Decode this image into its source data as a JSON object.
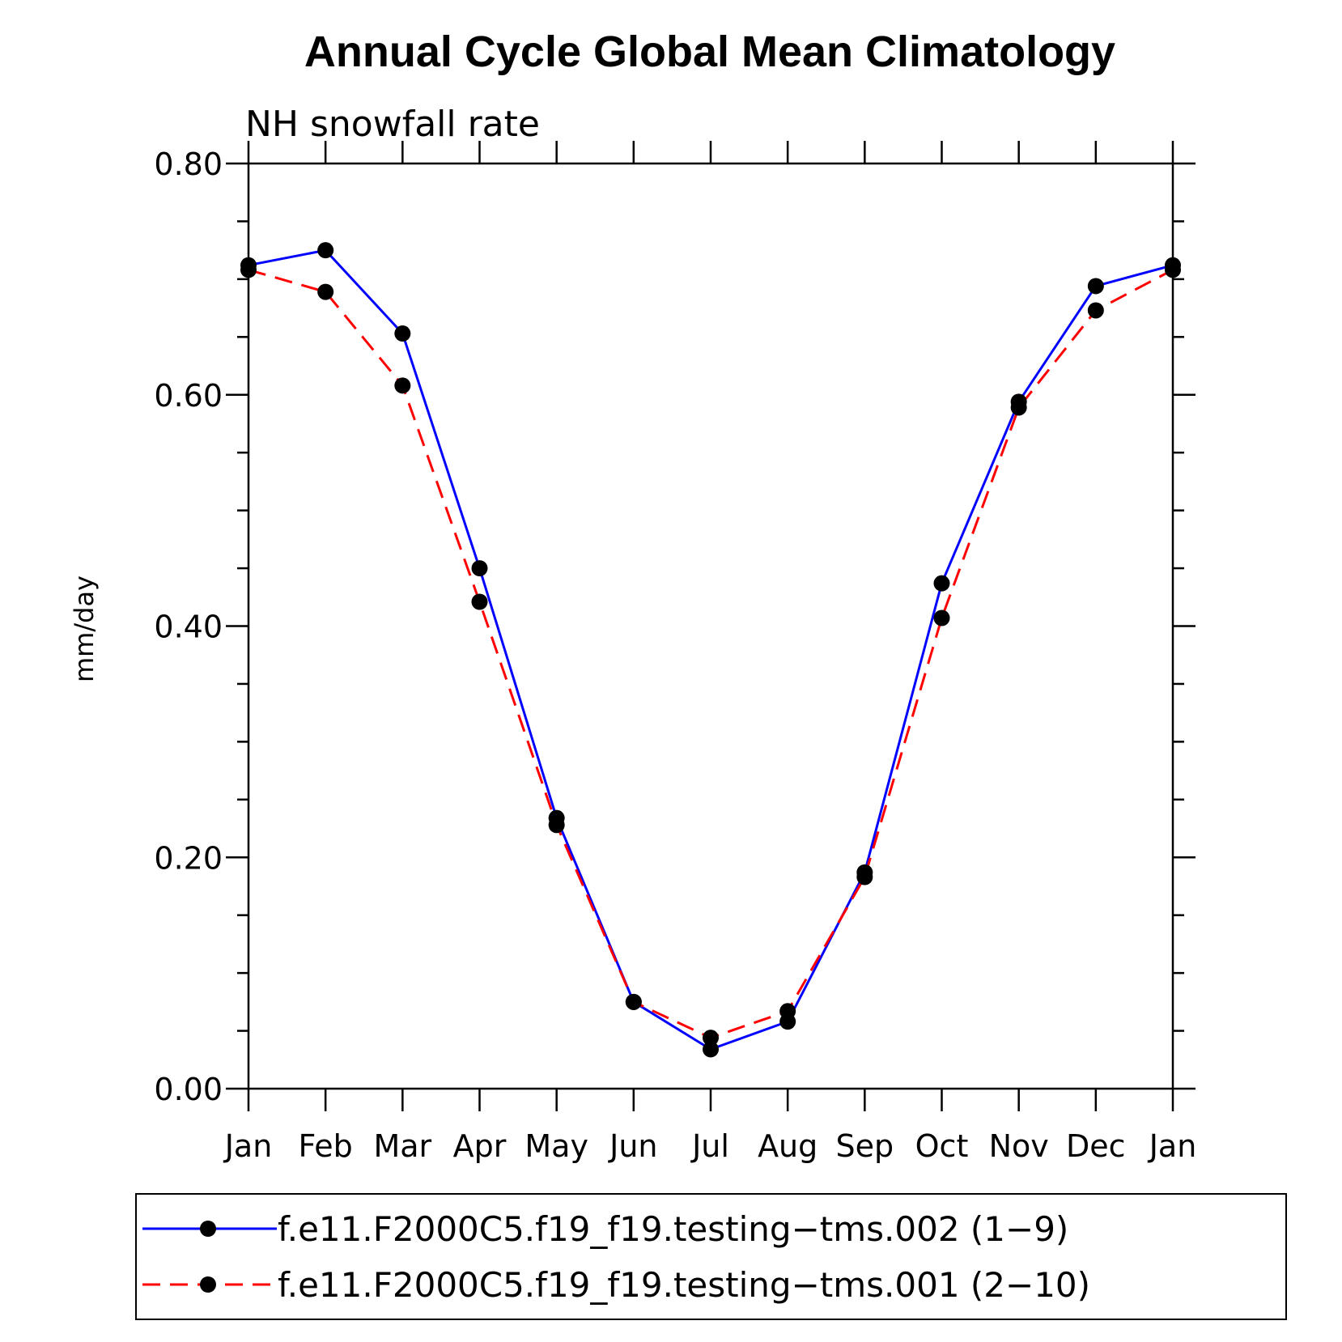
{
  "chart_data": {
    "type": "line",
    "title": "Annual Cycle Global Mean Climatology",
    "subtitle": "NH snowfall rate",
    "xlabel": "",
    "ylabel": "mm/day",
    "categories": [
      "Jan",
      "Feb",
      "Mar",
      "Apr",
      "May",
      "Jun",
      "Jul",
      "Aug",
      "Sep",
      "Oct",
      "Nov",
      "Dec",
      "Jan"
    ],
    "ylim": [
      0.0,
      0.8
    ],
    "yticks": [
      "0.00",
      "0.20",
      "0.40",
      "0.60",
      "0.80"
    ],
    "grid": false,
    "legend_position": "bottom",
    "series": [
      {
        "name": "f.e11.F2000C5.f19_f19.testing−tms.002 (1−9)",
        "color": "#0000ff",
        "line_style": "solid",
        "marker": "filled-circle",
        "values": [
          0.712,
          0.725,
          0.653,
          0.45,
          0.234,
          0.075,
          0.034,
          0.058,
          0.187,
          0.437,
          0.594,
          0.694,
          0.712
        ]
      },
      {
        "name": "f.e11.F2000C5.f19_f19.testing−tms.001 (2−10)",
        "color": "#ff0000",
        "line_style": "dashed",
        "marker": "filled-circle",
        "values": [
          0.708,
          0.689,
          0.608,
          0.421,
          0.228,
          0.075,
          0.044,
          0.067,
          0.183,
          0.407,
          0.589,
          0.673,
          0.708
        ]
      }
    ]
  }
}
